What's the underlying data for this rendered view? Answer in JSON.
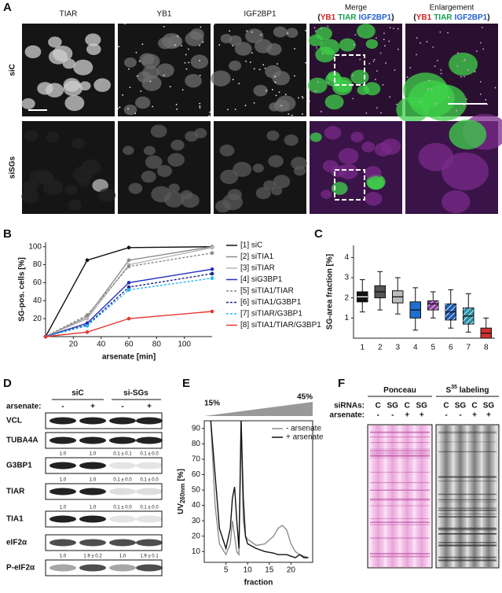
{
  "panel_labels": [
    "A",
    "B",
    "C",
    "D",
    "E",
    "F"
  ],
  "panel_a": {
    "columns": [
      "TIAR",
      "YB1",
      "IGF2BP1",
      "Merge",
      "Enlargement"
    ],
    "channel_legend": [
      "(",
      "YB1",
      "TIAR",
      "IGF2BP1",
      ")"
    ],
    "rows": [
      "siC",
      "siSGs"
    ]
  },
  "chart_data": [
    {
      "type": "line",
      "xlabel": "arsenate [min]",
      "ylabel": "SG-pos. cells [%]",
      "x": [
        0,
        30,
        60,
        120
      ],
      "xlim": [
        0,
        120
      ],
      "xticks": [
        20,
        40,
        60,
        80,
        100
      ],
      "ylim": [
        0,
        105
      ],
      "yticks": [
        20,
        40,
        60,
        80,
        100
      ],
      "legend": "right",
      "series": [
        {
          "name": "[1] siC",
          "color": "#111111",
          "dashed": false,
          "values": [
            0,
            85,
            99,
            100
          ]
        },
        {
          "name": "[2] siTIA1",
          "color": "#8c8c8c",
          "dashed": false,
          "values": [
            0,
            22,
            85,
            100
          ]
        },
        {
          "name": "[3] siTIAR",
          "color": "#b5b5b5",
          "dashed": false,
          "values": [
            0,
            20,
            80,
            99
          ]
        },
        {
          "name": "[4] siG3BP1",
          "color": "#1f2fbf",
          "dashed": false,
          "values": [
            0,
            15,
            60,
            75
          ]
        },
        {
          "name": "[5] siTIA1/TIAR",
          "color": "#8a8a8a",
          "dashed": true,
          "values": [
            0,
            24,
            78,
            93
          ]
        },
        {
          "name": "[6] siTIA1/G3BP1",
          "color": "#1a237e",
          "dashed": true,
          "values": [
            0,
            13,
            55,
            70
          ]
        },
        {
          "name": "[7] siTIAR/G3BP1",
          "color": "#29b6f6",
          "dashed": true,
          "values": [
            0,
            12,
            52,
            65
          ]
        },
        {
          "name": "[8] siTIA1/TIAR/G3BP1",
          "color": "#e53935",
          "dashed": false,
          "values": [
            0,
            5,
            20,
            28
          ]
        }
      ]
    },
    {
      "type": "box",
      "ylabel": "SG-area fraction [%]",
      "categories": [
        "1",
        "2",
        "3",
        "4",
        "5",
        "6",
        "7",
        "8"
      ],
      "ylim": [
        0,
        4.6
      ],
      "yticks": [
        1,
        2,
        3,
        4
      ],
      "colors": [
        "#111111",
        "#555555",
        "#bdbdbd",
        "#1e6fd0",
        "#8e3fa0",
        "#1e5bb0",
        "#2b8fa8",
        "#d32f2f"
      ],
      "hatched": [
        false,
        false,
        false,
        false,
        true,
        true,
        true,
        false
      ],
      "boxes": [
        {
          "whisker_low": 1.3,
          "q1": 1.8,
          "median": 2.05,
          "q3": 2.3,
          "whisker_high": 2.9
        },
        {
          "whisker_low": 1.4,
          "q1": 2.0,
          "median": 2.3,
          "q3": 2.6,
          "whisker_high": 3.3
        },
        {
          "whisker_low": 1.2,
          "q1": 1.75,
          "median": 2.05,
          "q3": 2.35,
          "whisker_high": 3.0
        },
        {
          "whisker_low": 0.4,
          "q1": 1.0,
          "median": 1.4,
          "q3": 1.8,
          "whisker_high": 2.5
        },
        {
          "whisker_low": 1.0,
          "q1": 1.4,
          "median": 1.7,
          "q3": 1.85,
          "whisker_high": 2.3
        },
        {
          "whisker_low": 0.5,
          "q1": 0.9,
          "median": 1.3,
          "q3": 1.7,
          "whisker_high": 2.4
        },
        {
          "whisker_low": 0.3,
          "q1": 0.7,
          "median": 1.1,
          "q3": 1.5,
          "whisker_high": 2.2
        },
        {
          "whisker_low": 0,
          "q1": 0,
          "median": 0.25,
          "q3": 0.5,
          "whisker_high": 1.0
        }
      ]
    },
    {
      "type": "line",
      "xlabel": "fraction",
      "ylabel": {
        "text": "UV",
        "sub": "260nm",
        "unit": "[%]"
      },
      "gradient_labels": [
        "15%",
        "45%"
      ],
      "x": [
        1.5,
        2.5,
        3.5,
        5,
        6,
        6.5,
        7,
        7.5,
        8,
        8.5,
        9,
        9.5,
        10,
        12,
        14,
        16,
        17,
        18,
        19,
        20,
        21,
        22,
        23,
        24
      ],
      "xlim": [
        0,
        25
      ],
      "xticks": [
        5,
        10,
        15,
        20
      ],
      "ylim": [
        3,
        95
      ],
      "yticks": [
        10,
        20,
        30,
        40,
        50,
        60,
        70,
        80,
        90
      ],
      "legend": "upper right",
      "series": [
        {
          "name": "- arsenate",
          "color": "#8c8c8c",
          "dashed": false,
          "values": [
            95,
            40,
            15,
            8,
            15,
            30,
            20,
            10,
            8,
            95,
            30,
            20,
            18,
            14,
            15,
            20,
            25,
            27,
            24,
            15,
            10,
            8,
            7,
            6
          ]
        },
        {
          "name": "+ arsenate",
          "color": "#111111",
          "dashed": false,
          "values": [
            95,
            60,
            25,
            12,
            25,
            45,
            52,
            30,
            12,
            95,
            45,
            20,
            15,
            12,
            10,
            9,
            8,
            8,
            8,
            7,
            6,
            8,
            6,
            6
          ]
        }
      ]
    }
  ],
  "panel_d": {
    "conditions": [
      "siC",
      "si-SGs"
    ],
    "treatment_label": "arsenate:",
    "lanes": [
      "-",
      "+",
      "-",
      "+"
    ],
    "rows": [
      {
        "label": "VCL"
      },
      {
        "label": "TUBA4A"
      },
      {
        "label": "G3BP1",
        "quant_above": [
          "1.0",
          "1.0",
          "0.1 ± 0.1",
          "0.1 ± 0.0"
        ]
      },
      {
        "label": "TIAR",
        "quant_above": [
          "1.0",
          "1.0",
          "0.1 ± 0.0",
          "0.1 ± 0.0"
        ]
      },
      {
        "label": "TIA1",
        "quant_above": [
          "1.0",
          "1.0",
          "0.1 ± 0.0",
          "0.1 ± 0.0"
        ]
      },
      {
        "label": "eIF2α"
      },
      {
        "label": "P-eIF2α",
        "quant_above": [
          "1.0",
          "1.9 ± 0.2",
          "1.0",
          "1.9 ± 0.1"
        ]
      }
    ]
  },
  "panel_f": {
    "headers": [
      {
        "text": "Ponceau"
      },
      {
        "text": "S",
        "sup": "35",
        "rest": " labeling"
      }
    ],
    "rows": [
      {
        "label": "siRNAs:",
        "lanes": [
          "C",
          "SG",
          "C",
          "SG"
        ]
      },
      {
        "label": "arsenate:",
        "lanes": [
          "-",
          "-",
          "+",
          "+"
        ]
      }
    ]
  }
}
